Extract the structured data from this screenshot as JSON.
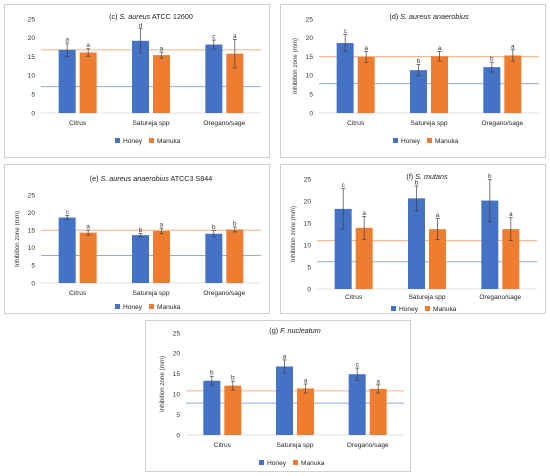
{
  "legend_labels": [
    "Honey",
    "Manuka"
  ],
  "colors": {
    "honey": "#4472C4",
    "manuka": "#ED7D31",
    "line_blue": "#8FAADC",
    "line_orange": "#F4B183",
    "error": "#404040"
  },
  "chart_data": [
    {
      "id": "c",
      "type": "bar",
      "title_parts": [
        {
          "t": "(c) ",
          "i": false
        },
        {
          "t": "S. aureus",
          "i": true
        },
        {
          "t": "  ATCC 12600",
          "i": false
        }
      ],
      "ylabel": "",
      "ylim": [
        0,
        25
      ],
      "yticks": [
        0,
        5,
        10,
        15,
        20,
        25
      ],
      "categories": [
        "Citrus",
        "Satureja spp",
        "Oregano/sage"
      ],
      "series": [
        {
          "name": "Honey",
          "values": [
            16.8,
            19.2,
            18.2
          ],
          "errors": [
            1.8,
            3.2,
            1.2
          ],
          "letters": [
            "a",
            "d",
            "c"
          ]
        },
        {
          "name": "Manuka",
          "values": [
            16.1,
            15.4,
            15.8
          ],
          "errors": [
            1.0,
            0.8,
            3.8
          ],
          "letters": [
            "a",
            "a",
            "a"
          ]
        }
      ],
      "ref_lines": {
        "blue": 7.0,
        "orange": 16.8
      }
    },
    {
      "id": "d",
      "type": "bar",
      "title_parts": [
        {
          "t": "(d) ",
          "i": false
        },
        {
          "t": "S. aureus anaerobius",
          "i": true
        }
      ],
      "ylabel": "Inhibition zone (mm)",
      "ylim": [
        0,
        25
      ],
      "yticks": [
        0,
        5,
        10,
        15,
        20,
        25
      ],
      "categories": [
        "Citrus",
        "Satureja spp",
        "Oregano/sage"
      ],
      "series": [
        {
          "name": "Honey",
          "values": [
            18.6,
            11.4,
            12.2
          ],
          "errors": [
            2.3,
            1.5,
            1.3
          ],
          "letters": [
            "c",
            "b",
            "b"
          ]
        },
        {
          "name": "Manuka",
          "values": [
            14.9,
            15.1,
            15.3
          ],
          "errors": [
            1.5,
            1.3,
            1.5
          ],
          "letters": [
            "a",
            "a",
            "a"
          ]
        }
      ],
      "ref_lines": {
        "blue": 7.8,
        "orange": 15.0
      }
    },
    {
      "id": "e",
      "type": "bar",
      "title_parts": [
        {
          "t": "(e) ",
          "i": false
        },
        {
          "t": "S. aureus anaerobius",
          "i": true
        },
        {
          "t": "  ATCC3 S844",
          "i": false
        }
      ],
      "ylabel": "Inhibition zone (mm)",
      "ylim": [
        0,
        25
      ],
      "yticks": [
        0,
        5,
        10,
        15,
        20,
        25
      ],
      "categories": [
        "Citrus",
        "Satureja spp",
        "Oregano/sage"
      ],
      "series": [
        {
          "name": "Honey",
          "values": [
            18.6,
            13.6,
            14.0
          ],
          "errors": [
            0.6,
            0.5,
            0.9
          ],
          "letters": [
            "c",
            "b",
            "b"
          ]
        },
        {
          "name": "Manuka",
          "values": [
            14.3,
            14.8,
            15.2
          ],
          "errors": [
            0.7,
            0.8,
            0.7
          ],
          "letters": [
            "a",
            "a",
            "b"
          ]
        }
      ],
      "ref_lines": {
        "blue": 7.8,
        "orange": 15.0
      }
    },
    {
      "id": "f",
      "type": "bar",
      "title_parts": [
        {
          "t": "(f) ",
          "i": false
        },
        {
          "t": "S. mutans",
          "i": true
        }
      ],
      "ylabel": "Inhibition zone (mm)",
      "ylim": [
        0,
        25
      ],
      "yticks": [
        0,
        5,
        10,
        15,
        20,
        25
      ],
      "categories": [
        "Citrus",
        "Satureja spp",
        "Oregano/sage"
      ],
      "series": [
        {
          "name": "Honey",
          "values": [
            18.2,
            20.6,
            20.1
          ],
          "errors": [
            4.6,
            2.8,
            4.8
          ],
          "letters": [
            "c",
            "b",
            "b"
          ]
        },
        {
          "name": "Manuka",
          "values": [
            13.9,
            13.6,
            13.6
          ],
          "errors": [
            2.6,
            2.4,
            2.6
          ],
          "letters": [
            "a",
            "a",
            "a"
          ]
        }
      ],
      "ref_lines": {
        "blue": 6.2,
        "orange": 11.0
      }
    },
    {
      "id": "g",
      "type": "bar",
      "title_parts": [
        {
          "t": "(g) ",
          "i": false
        },
        {
          "t": "F. nucleatum",
          "i": true
        }
      ],
      "ylabel": "Inhibition zone (mm)",
      "ylim": [
        0,
        25
      ],
      "yticks": [
        0,
        5,
        10,
        15,
        20,
        25
      ],
      "categories": [
        "Citrus",
        "Satureja spp",
        "Oregano/sage"
      ],
      "series": [
        {
          "name": "Honey",
          "values": [
            13.3,
            16.8,
            14.9
          ],
          "errors": [
            1.1,
            1.6,
            1.5
          ],
          "letters": [
            "b",
            "a",
            "c"
          ]
        },
        {
          "name": "Manuka",
          "values": [
            12.1,
            11.4,
            11.3
          ],
          "errors": [
            1.1,
            1.1,
            1.0
          ],
          "letters": [
            "b",
            "a",
            "a"
          ]
        }
      ],
      "ref_lines": {
        "blue": 7.8,
        "orange": 10.8
      }
    }
  ]
}
